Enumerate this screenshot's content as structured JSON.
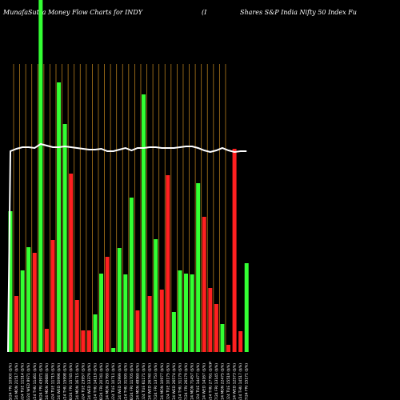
{
  "chart_data": {
    "type": "bar",
    "title_left": "MunafaSutra Money Flow  Charts for INDY",
    "title_mid": "(I",
    "title_right": "Shares S&P India  Nifty 50  Index Fu",
    "xlabel": "",
    "ylabel": "",
    "ylim": [
      0,
      440
    ],
    "grid": true,
    "background": "#000000",
    "gridline_color": "#b07a1c",
    "line_color": "#ffffff",
    "colors": {
      "up": "#33ff33",
      "down": "#ff2020"
    },
    "extra_label": "$",
    "categories": [
      "31/05/24 FRI 10900 ($%)",
      "03/06/24 MON 21517 ($%)",
      "04/06/24 TUE 11514 ($%)",
      "05/06/24 WED 8971 ($%)",
      "06/06/24 THU 11461 ($%)",
      "07/06/24 FRI 43971 ($%)",
      "10/06/24 MON 26680 ($%)",
      "11/06/24 TUE 11715 ($%)",
      "12/06/24 WED 50996 ($%)",
      "13/06/24 THU 15998 ($%)",
      "14/06/24 FRI 15745 ($%)",
      "17/06/24 MON 16715 ($%)",
      "18/06/24 TUE 23957 ($%)",
      "19/06/24 WED 13379 ($%)",
      "20/06/24 THU 14119 ($%)",
      "21/06/24 FRI 20741 ($%)",
      "24/06/24 MON 25769 ($%)",
      "25/06/24 TUE 10711 ($%)",
      "26/06/24 WED 52999 ($%)",
      "27/06/24 THU 31595 ($%)",
      "28/06/24 FRI 11705 ($%)",
      "01/07/24 MON 48569 ($%)",
      "02/07/24 TUE 61171 ($%)",
      "03/07/24 WED 26740 ($%)",
      "05/07/24 FRI 13753 ($%)",
      "08/07/24 MON 10977 ($%)",
      "09/07/24 TUE 10175 ($%)",
      "10/07/24 WED 26574 ($%)",
      "11/07/24 THU 31179 ($%)",
      "12/07/24 FRI 26179 ($%)",
      "15/07/24 MON 71457 ($%)",
      "16/07/24 TUE 14477 ($%)",
      "17/07/24 WED 14167 ($%)",
      "18/07/24 THU 27761 ($%)",
      "19/07/24 FRI 13145 ($%)",
      "22/07/24 MON 22475 ($%)",
      "23/07/24 TUE 15519 ($%)",
      "24/07/24 WED 12573 ($%)",
      "25/07/24 THU 14517 ($%)",
      "26/07/24 FRI 15171 ($%)"
    ],
    "values": [
      176,
      70,
      102,
      131,
      124,
      440,
      29,
      140,
      337,
      285,
      223,
      65,
      27,
      27,
      47,
      98,
      119,
      5,
      130,
      97,
      193,
      52,
      322,
      70,
      141,
      78,
      221,
      50,
      102,
      98,
      97,
      211,
      169,
      80,
      60,
      35,
      9,
      254,
      26,
      111
    ],
    "direction": [
      "up",
      "down",
      "up",
      "up",
      "down",
      "up",
      "down",
      "down",
      "up",
      "up",
      "down",
      "down",
      "down",
      "down",
      "up",
      "up",
      "down",
      "up",
      "up",
      "up",
      "up",
      "down",
      "up",
      "down",
      "up",
      "down",
      "down",
      "up",
      "up",
      "up",
      "up",
      "up",
      "down",
      "down",
      "down",
      "up",
      "down",
      "down",
      "down",
      "up"
    ],
    "line_values": [
      251,
      254,
      256,
      256,
      255,
      260,
      258,
      256,
      256,
      257,
      256,
      255,
      254,
      253,
      253,
      254,
      251,
      251,
      253,
      255,
      252,
      255,
      255,
      256,
      256,
      255,
      255,
      255,
      256,
      257,
      257,
      255,
      252,
      250,
      252,
      255,
      252,
      250,
      251,
      251
    ]
  }
}
